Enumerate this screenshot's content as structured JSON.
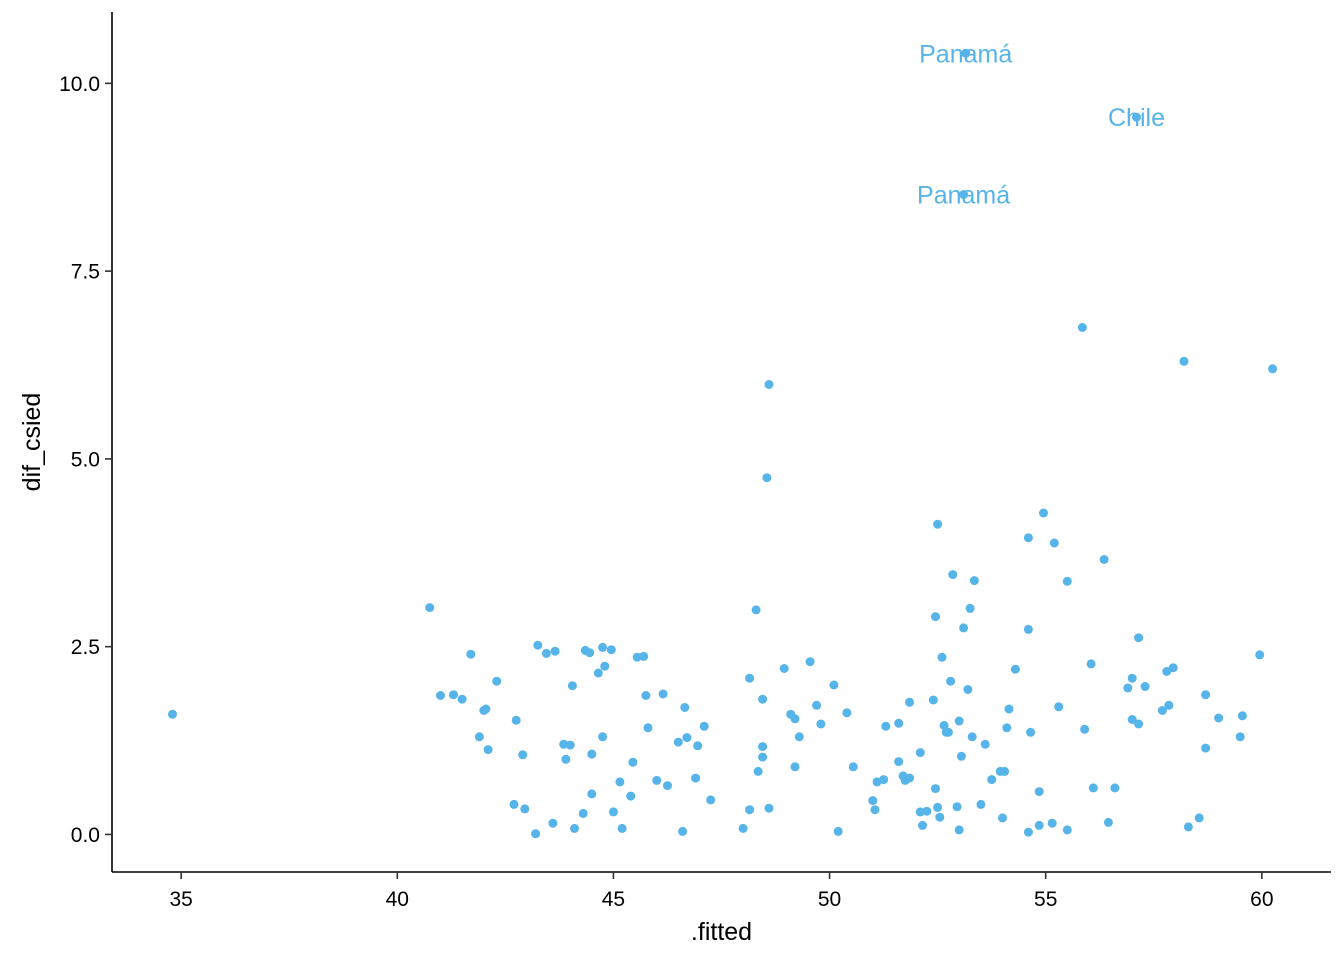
{
  "chart_data": {
    "type": "scatter",
    "title": "",
    "xlabel": ".fitted",
    "ylabel": "dif_csied",
    "xlim": [
      33.4,
      61.6
    ],
    "ylim": [
      -0.5,
      10.95
    ],
    "grid": false,
    "legend": "none",
    "point_color": "#56B4E9",
    "xticks": [
      35,
      40,
      45,
      50,
      55,
      60
    ],
    "xtick_labels": [
      "35",
      "40",
      "45",
      "50",
      "55",
      "60"
    ],
    "yticks": [
      0,
      2.5,
      5,
      7.5,
      10
    ],
    "ytick_labels": [
      "0.0",
      "2.5",
      "5.0",
      "7.5",
      "10.0"
    ],
    "points": [
      [
        34.8,
        1.6
      ],
      [
        40.75,
        3.02
      ],
      [
        41.0,
        1.85
      ],
      [
        41.3,
        1.86
      ],
      [
        41.5,
        1.8
      ],
      [
        41.7,
        2.4
      ],
      [
        41.9,
        1.3
      ],
      [
        42.0,
        1.65
      ],
      [
        42.05,
        1.67
      ],
      [
        42.1,
        1.13
      ],
      [
        42.3,
        2.04
      ],
      [
        42.7,
        0.4
      ],
      [
        42.75,
        1.52
      ],
      [
        42.9,
        1.06
      ],
      [
        42.95,
        0.34
      ],
      [
        43.2,
        0.01
      ],
      [
        43.25,
        2.52
      ],
      [
        43.45,
        2.41
      ],
      [
        43.65,
        2.44
      ],
      [
        43.6,
        0.15
      ],
      [
        43.85,
        1.2
      ],
      [
        43.9,
        1.0
      ],
      [
        44.0,
        1.19
      ],
      [
        44.05,
        1.98
      ],
      [
        44.1,
        0.08
      ],
      [
        44.3,
        0.28
      ],
      [
        44.35,
        2.45
      ],
      [
        44.45,
        2.42
      ],
      [
        44.5,
        1.07
      ],
      [
        44.5,
        0.54
      ],
      [
        44.65,
        2.15
      ],
      [
        44.75,
        2.49
      ],
      [
        44.75,
        1.3
      ],
      [
        44.8,
        2.24
      ],
      [
        44.95,
        2.46
      ],
      [
        45.0,
        0.3
      ],
      [
        45.15,
        0.7
      ],
      [
        45.2,
        0.08
      ],
      [
        45.4,
        0.51
      ],
      [
        45.45,
        0.96
      ],
      [
        45.55,
        2.36
      ],
      [
        45.7,
        2.37
      ],
      [
        45.75,
        1.85
      ],
      [
        45.8,
        1.42
      ],
      [
        46.0,
        0.72
      ],
      [
        46.15,
        1.87
      ],
      [
        46.25,
        0.65
      ],
      [
        46.5,
        1.23
      ],
      [
        46.6,
        0.04
      ],
      [
        46.65,
        1.69
      ],
      [
        46.7,
        1.29
      ],
      [
        46.9,
        0.75
      ],
      [
        46.95,
        1.18
      ],
      [
        47.1,
        1.44
      ],
      [
        47.25,
        0.46
      ],
      [
        48.0,
        0.08
      ],
      [
        48.15,
        2.08
      ],
      [
        48.15,
        0.33
      ],
      [
        48.3,
        2.99
      ],
      [
        48.35,
        0.84
      ],
      [
        48.45,
        1.8
      ],
      [
        48.45,
        1.03
      ],
      [
        48.45,
        1.17
      ],
      [
        48.55,
        4.75
      ],
      [
        48.6,
        5.99
      ],
      [
        48.6,
        0.35
      ],
      [
        48.95,
        2.21
      ],
      [
        49.1,
        1.6
      ],
      [
        49.2,
        0.9
      ],
      [
        49.2,
        1.54
      ],
      [
        49.3,
        1.3
      ],
      [
        49.55,
        2.3
      ],
      [
        49.7,
        1.72
      ],
      [
        49.8,
        1.47
      ],
      [
        50.1,
        1.99
      ],
      [
        50.2,
        0.04
      ],
      [
        50.4,
        1.62
      ],
      [
        50.55,
        0.9
      ],
      [
        51.0,
        0.45
      ],
      [
        51.05,
        0.33
      ],
      [
        51.1,
        0.7
      ],
      [
        51.25,
        0.73
      ],
      [
        51.3,
        1.44
      ],
      [
        51.6,
        0.97
      ],
      [
        51.6,
        1.48
      ],
      [
        51.7,
        0.78
      ],
      [
        51.75,
        0.72
      ],
      [
        51.85,
        1.76
      ],
      [
        51.85,
        0.75
      ],
      [
        52.1,
        0.3
      ],
      [
        52.1,
        1.09
      ],
      [
        52.15,
        0.12
      ],
      [
        52.25,
        0.31
      ],
      [
        52.4,
        1.79
      ],
      [
        52.45,
        2.9
      ],
      [
        52.45,
        0.61
      ],
      [
        52.5,
        4.13
      ],
      [
        52.5,
        0.36
      ],
      [
        52.55,
        0.23
      ],
      [
        52.6,
        2.36
      ],
      [
        52.65,
        1.45
      ],
      [
        52.7,
        1.36
      ],
      [
        52.75,
        1.36
      ],
      [
        52.8,
        2.04
      ],
      [
        52.85,
        3.46
      ],
      [
        52.95,
        0.37
      ],
      [
        53.0,
        1.51
      ],
      [
        53.0,
        0.06
      ],
      [
        53.05,
        1.04
      ],
      [
        53.1,
        2.75
      ],
      [
        53.2,
        1.93
      ],
      [
        53.25,
        3.01
      ],
      [
        53.3,
        1.3
      ],
      [
        53.35,
        3.38
      ],
      [
        53.5,
        0.4
      ],
      [
        53.6,
        1.2
      ],
      [
        53.75,
        0.73
      ],
      [
        53.95,
        0.84
      ],
      [
        54.0,
        0.22
      ],
      [
        54.05,
        0.84
      ],
      [
        54.1,
        1.42
      ],
      [
        54.15,
        1.67
      ],
      [
        54.3,
        2.2
      ],
      [
        54.6,
        0.03
      ],
      [
        54.6,
        3.95
      ],
      [
        54.6,
        2.73
      ],
      [
        54.65,
        1.36
      ],
      [
        54.85,
        0.57
      ],
      [
        54.85,
        0.12
      ],
      [
        54.95,
        4.28
      ],
      [
        55.15,
        0.15
      ],
      [
        55.2,
        3.88
      ],
      [
        55.3,
        1.7
      ],
      [
        55.5,
        3.37
      ],
      [
        55.5,
        0.06
      ],
      [
        55.85,
        6.75
      ],
      [
        55.9,
        1.4
      ],
      [
        56.05,
        2.27
      ],
      [
        56.1,
        0.62
      ],
      [
        56.35,
        3.66
      ],
      [
        56.45,
        0.16
      ],
      [
        56.6,
        0.62
      ],
      [
        56.9,
        1.95
      ],
      [
        57.0,
        2.08
      ],
      [
        57.0,
        1.53
      ],
      [
        57.15,
        1.47
      ],
      [
        57.15,
        2.62
      ],
      [
        57.3,
        1.97
      ],
      [
        57.7,
        1.65
      ],
      [
        57.8,
        2.17
      ],
      [
        57.85,
        1.72
      ],
      [
        57.95,
        2.22
      ],
      [
        58.2,
        6.3
      ],
      [
        58.3,
        0.1
      ],
      [
        58.55,
        0.22
      ],
      [
        58.7,
        1.86
      ],
      [
        58.7,
        1.15
      ],
      [
        59.0,
        1.55
      ],
      [
        59.5,
        1.3
      ],
      [
        59.55,
        1.58
      ],
      [
        59.95,
        2.39
      ],
      [
        60.25,
        6.2
      ],
      [
        53.15,
        10.4
      ],
      [
        53.1,
        8.52
      ],
      [
        57.1,
        9.55
      ]
    ],
    "labels": [
      {
        "x": 53.15,
        "y": 10.4,
        "text": "Panamá"
      },
      {
        "x": 57.1,
        "y": 9.55,
        "text": "Chile"
      },
      {
        "x": 53.1,
        "y": 8.52,
        "text": "Panamá"
      }
    ]
  }
}
